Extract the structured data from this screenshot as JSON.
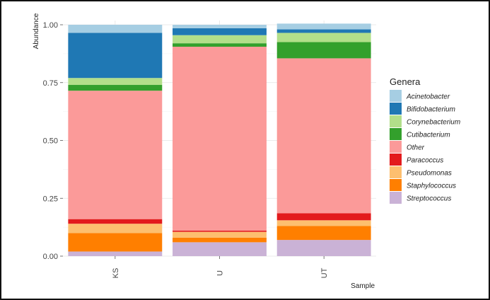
{
  "chart_data": {
    "type": "bar",
    "stacked": true,
    "title": "",
    "xlabel": "Sample",
    "ylabel": "Abundance",
    "ylim": [
      0,
      1.0
    ],
    "yticks": [
      "0.00",
      "0.25",
      "0.50",
      "0.75",
      "1.00"
    ],
    "categories": [
      "KS",
      "U",
      "UT"
    ],
    "legend_title": "Genera",
    "legend_position": "right",
    "series": [
      {
        "name": "Streptococcus",
        "color": "#cab2d6",
        "values": [
          0.02,
          0.06,
          0.07
        ]
      },
      {
        "name": "Staphylococcus",
        "color": "#ff7f00",
        "values": [
          0.08,
          0.02,
          0.06
        ]
      },
      {
        "name": "Pseudomonas",
        "color": "#fdbf6f",
        "values": [
          0.04,
          0.025,
          0.025
        ]
      },
      {
        "name": "Paracoccus",
        "color": "#e31a1c",
        "values": [
          0.02,
          0.005,
          0.03
        ]
      },
      {
        "name": "Other",
        "color": "#fb9a99",
        "values": [
          0.555,
          0.795,
          0.67
        ]
      },
      {
        "name": "Cutibacterium",
        "color": "#33a02c",
        "values": [
          0.025,
          0.015,
          0.07
        ]
      },
      {
        "name": "Corynebacterium",
        "color": "#b2df8a",
        "values": [
          0.03,
          0.035,
          0.04
        ]
      },
      {
        "name": "Bifidobacterium",
        "color": "#1f78b4",
        "values": [
          0.195,
          0.03,
          0.015
        ]
      },
      {
        "name": "Acinetobacter",
        "color": "#a6cee3",
        "values": [
          0.035,
          0.015,
          0.025
        ]
      }
    ],
    "legend_order": [
      "Acinetobacter",
      "Bifidobacterium",
      "Corynebacterium",
      "Cutibacterium",
      "Other",
      "Paracoccus",
      "Pseudomonas",
      "Staphylococcus",
      "Streptococcus"
    ],
    "grid": true
  }
}
